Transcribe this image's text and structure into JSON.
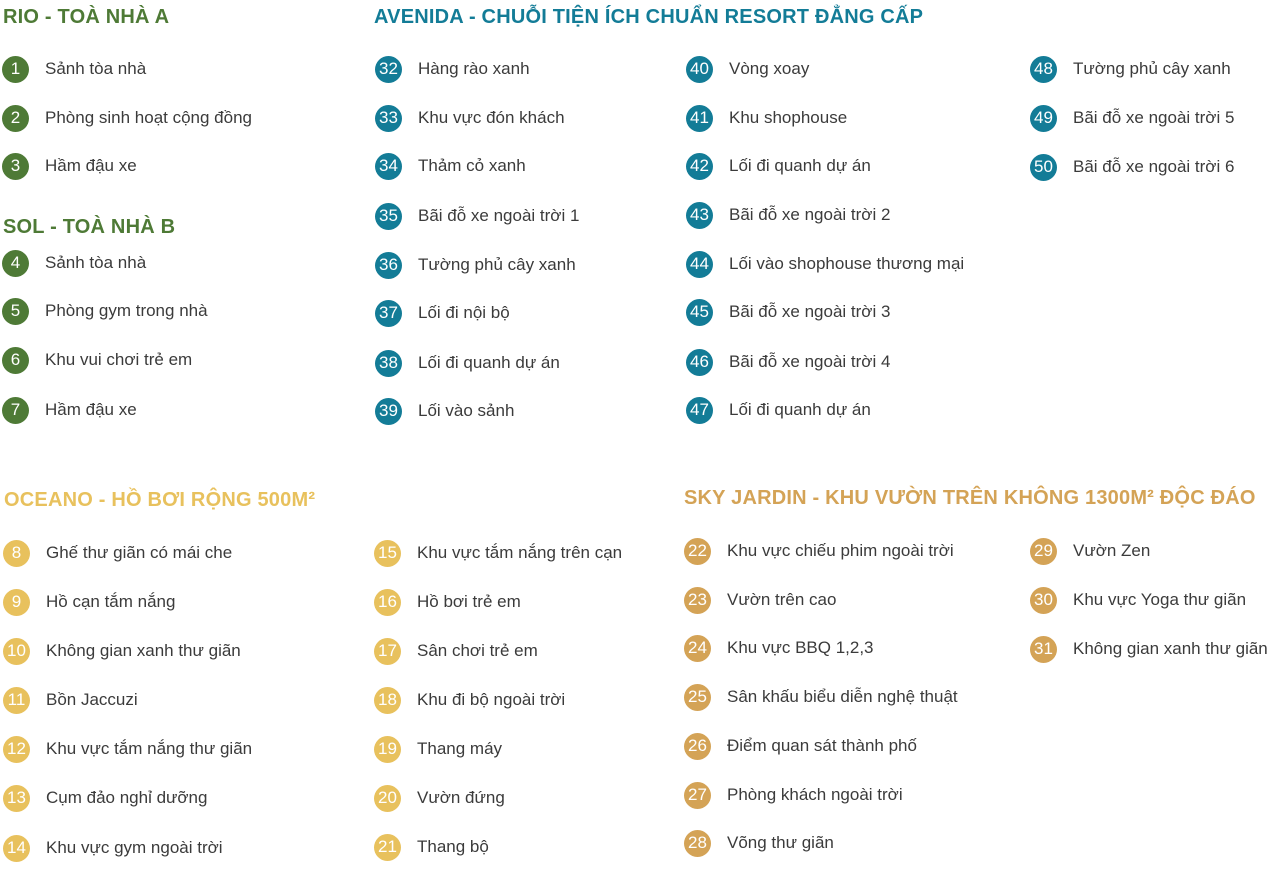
{
  "colors": {
    "rio": "#4e7a36",
    "avenida": "#137c97",
    "oceano": "#e8c15d",
    "sky": "#d4a356",
    "text": "#3b3b3b"
  },
  "sections": {
    "rio": {
      "title": "RIO - TOÀ NHÀ A",
      "items": [
        {
          "num": "1",
          "label": "Sảnh tòa nhà"
        },
        {
          "num": "2",
          "label": "Phòng sinh hoạt cộng đồng"
        },
        {
          "num": "3",
          "label": "Hầm đậu xe"
        }
      ]
    },
    "sol": {
      "title": "SOL - TOÀ NHÀ B",
      "items": [
        {
          "num": "4",
          "label": "Sảnh tòa nhà"
        },
        {
          "num": "5",
          "label": "Phòng gym trong nhà"
        },
        {
          "num": "6",
          "label": "Khu vui chơi trẻ em"
        },
        {
          "num": "7",
          "label": "Hầm đậu xe"
        }
      ]
    },
    "avenida": {
      "title": "AVENIDA - CHUỖI TIỆN ÍCH CHUẨN RESORT ĐẲNG CẤP",
      "col1": [
        {
          "num": "32",
          "label": "Hàng rào xanh"
        },
        {
          "num": "33",
          "label": "Khu vực đón khách"
        },
        {
          "num": "34",
          "label": "Thảm cỏ xanh"
        },
        {
          "num": "35",
          "label": "Bãi đỗ xe ngoài trời 1"
        },
        {
          "num": "36",
          "label": "Tường phủ cây xanh"
        },
        {
          "num": "37",
          "label": "Lối đi nội bộ"
        },
        {
          "num": "38",
          "label": "Lối đi quanh dự án"
        },
        {
          "num": "39",
          "label": "Lối vào sảnh"
        }
      ],
      "col2": [
        {
          "num": "40",
          "label": "Vòng xoay"
        },
        {
          "num": "41",
          "label": "Khu shophouse"
        },
        {
          "num": "42",
          "label": "Lối đi quanh dự án"
        },
        {
          "num": "43",
          "label": "Bãi đỗ xe ngoài trời 2"
        },
        {
          "num": "44",
          "label": "Lối vào shophouse thương mại"
        },
        {
          "num": "45",
          "label": "Bãi đỗ xe ngoài trời 3"
        },
        {
          "num": "46",
          "label": "Bãi đỗ xe ngoài trời 4"
        },
        {
          "num": "47",
          "label": "Lối đi quanh dự án"
        }
      ],
      "col3": [
        {
          "num": "48",
          "label": "Tường phủ cây xanh"
        },
        {
          "num": "49",
          "label": "Bãi đỗ xe ngoài trời 5"
        },
        {
          "num": "50",
          "label": "Bãi đỗ xe ngoài trời 6"
        }
      ]
    },
    "oceano": {
      "title": "OCEANO - HỒ BƠI RỘNG 500M²",
      "col1": [
        {
          "num": "8",
          "label": "Ghế thư giãn có mái che"
        },
        {
          "num": "9",
          "label": "Hồ cạn tắm nắng"
        },
        {
          "num": "10",
          "label": "Không gian xanh thư giãn"
        },
        {
          "num": "11",
          "label": "Bồn Jaccuzi"
        },
        {
          "num": "12",
          "label": "Khu vực tắm nắng thư giãn"
        },
        {
          "num": "13",
          "label": "Cụm đảo nghỉ dưỡng"
        },
        {
          "num": "14",
          "label": "Khu vực gym ngoài trời"
        }
      ],
      "col2": [
        {
          "num": "15",
          "label": "Khu vực tắm nắng trên cạn"
        },
        {
          "num": "16",
          "label": "Hồ bơi trẻ em"
        },
        {
          "num": "17",
          "label": "Sân chơi trẻ em"
        },
        {
          "num": "18",
          "label": "Khu đi bộ ngoài trời"
        },
        {
          "num": "19",
          "label": "Thang máy"
        },
        {
          "num": "20",
          "label": "Vườn đứng"
        },
        {
          "num": "21",
          "label": "Thang bộ"
        }
      ]
    },
    "sky": {
      "title": "SKY JARDIN - KHU VƯỜN TRÊN KHÔNG 1300M² ĐỘC ĐÁO",
      "col1": [
        {
          "num": "22",
          "label": "Khu vực chiếu phim ngoài trời"
        },
        {
          "num": "23",
          "label": "Vườn trên cao"
        },
        {
          "num": "24",
          "label": "Khu vực BBQ 1,2,3"
        },
        {
          "num": "25",
          "label": "Sân khấu biểu diễn nghệ thuật"
        },
        {
          "num": "26",
          "label": "Điểm quan sát thành phố"
        },
        {
          "num": "27",
          "label": "Phòng khách ngoài trời"
        },
        {
          "num": "28",
          "label": "Võng thư giãn"
        }
      ],
      "col2": [
        {
          "num": "29",
          "label": "Vườn Zen"
        },
        {
          "num": "30",
          "label": "Khu vực Yoga thư giãn"
        },
        {
          "num": "31",
          "label": "Không gian xanh thư giãn"
        }
      ]
    }
  }
}
